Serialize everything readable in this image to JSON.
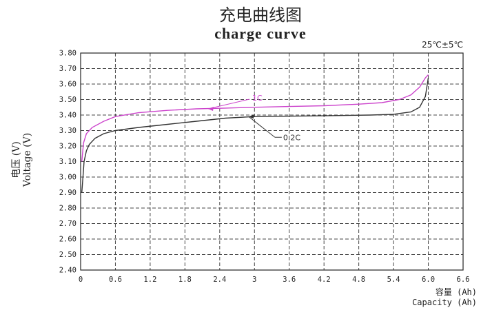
{
  "chart_data": {
    "type": "line",
    "title_cn": "充电曲线图",
    "title": "charge curve",
    "condition": "25℃±5℃",
    "ylabel_cn": "电压 (V)",
    "ylabel": "Voltage (V)",
    "xlabel_cn": "容量 (Ah)",
    "xlabel": "Capacity (Ah)",
    "xlim": [
      0,
      6.6
    ],
    "ylim": [
      2.4,
      3.8
    ],
    "x_ticks": [
      "0",
      "0.6",
      "1.2",
      "1.8",
      "2.4",
      "3",
      "3.6",
      "4.2",
      "4.8",
      "5.4",
      "6.0",
      "6.6"
    ],
    "y_ticks": [
      "2.40",
      "2.50",
      "2.60",
      "2.70",
      "2.80",
      "2.90",
      "3.00",
      "3.10",
      "3.20",
      "3.30",
      "3.40",
      "3.50",
      "3.60",
      "3.70",
      "3.80"
    ],
    "grid": true,
    "series": [
      {
        "name": "1C",
        "color": "#cc44cc",
        "points": [
          [
            0.02,
            3.1
          ],
          [
            0.05,
            3.22
          ],
          [
            0.1,
            3.28
          ],
          [
            0.2,
            3.32
          ],
          [
            0.4,
            3.36
          ],
          [
            0.6,
            3.39
          ],
          [
            1.0,
            3.415
          ],
          [
            1.5,
            3.43
          ],
          [
            2.0,
            3.44
          ],
          [
            2.5,
            3.445
          ],
          [
            3.0,
            3.45
          ],
          [
            3.6,
            3.455
          ],
          [
            4.2,
            3.46
          ],
          [
            4.8,
            3.47
          ],
          [
            5.2,
            3.48
          ],
          [
            5.5,
            3.5
          ],
          [
            5.7,
            3.53
          ],
          [
            5.85,
            3.58
          ],
          [
            5.95,
            3.64
          ],
          [
            6.0,
            3.66
          ]
        ]
      },
      {
        "name": "0.2C",
        "color": "#333333",
        "points": [
          [
            0.02,
            2.9
          ],
          [
            0.04,
            3.0
          ],
          [
            0.06,
            3.1
          ],
          [
            0.1,
            3.17
          ],
          [
            0.15,
            3.21
          ],
          [
            0.25,
            3.25
          ],
          [
            0.4,
            3.28
          ],
          [
            0.6,
            3.3
          ],
          [
            1.0,
            3.32
          ],
          [
            1.5,
            3.34
          ],
          [
            2.0,
            3.36
          ],
          [
            2.5,
            3.38
          ],
          [
            3.0,
            3.39
          ],
          [
            4.2,
            3.395
          ],
          [
            5.0,
            3.4
          ],
          [
            5.4,
            3.405
          ],
          [
            5.7,
            3.42
          ],
          [
            5.85,
            3.45
          ],
          [
            5.95,
            3.52
          ],
          [
            6.0,
            3.64
          ]
        ]
      }
    ],
    "annotations": [
      {
        "text": "1C",
        "series": "1C",
        "at": [
          2.2,
          3.44
        ]
      },
      {
        "text": "0.2C",
        "series": "0.2C",
        "at": [
          2.9,
          3.39
        ]
      }
    ]
  }
}
